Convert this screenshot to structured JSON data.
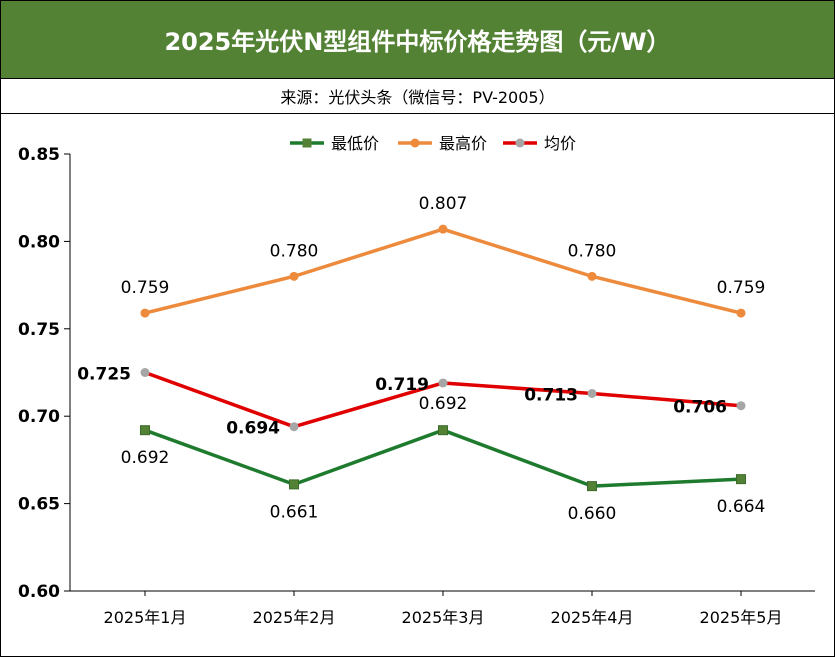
{
  "header": {
    "title": "2025年光伏N型组件中标价格走势图（元/W）",
    "source": "来源：光伏头条（微信号：PV-2005）"
  },
  "colors": {
    "title_bg": "#548235",
    "min_line": "#1e7b2e",
    "min_marker": "#548235",
    "max_line": "#ed8a3c",
    "avg_line": "#e00000",
    "avg_marker": "#a6a6a6"
  },
  "chart_data": {
    "type": "line",
    "title": "2025年光伏N型组件中标价格走势图（元/W）",
    "categories": [
      "2025年1月",
      "2025年2月",
      "2025年3月",
      "2025年4月",
      "2025年5月"
    ],
    "ylim": [
      0.6,
      0.85
    ],
    "yticks": [
      "0.85",
      "0.80",
      "0.75",
      "0.70",
      "0.65",
      "0.60"
    ],
    "grid": false,
    "legend_position": "top-center",
    "series": [
      {
        "name": "最低价",
        "values": [
          0.692,
          0.661,
          0.692,
          0.66,
          0.664
        ],
        "labels": [
          "0.692",
          "0.661",
          "0.692",
          "0.660",
          "0.664"
        ]
      },
      {
        "name": "最高价",
        "values": [
          0.759,
          0.78,
          0.807,
          0.78,
          0.759
        ],
        "labels": [
          "0.759",
          "0.780",
          "0.807",
          "0.780",
          "0.759"
        ]
      },
      {
        "name": "均价",
        "values": [
          0.725,
          0.694,
          0.719,
          0.713,
          0.706
        ],
        "labels": [
          "0.725",
          "0.694",
          "0.719",
          "0.713",
          "0.706"
        ]
      }
    ]
  }
}
